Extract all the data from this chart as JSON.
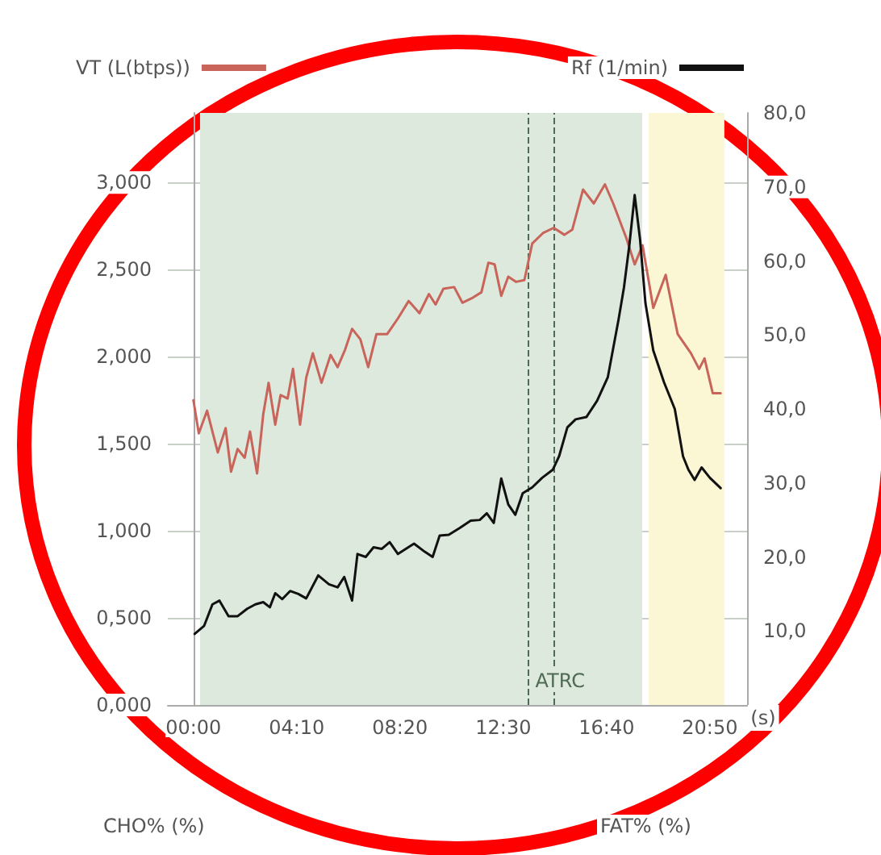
{
  "chart_data": {
    "type": "line",
    "xlabel": "(s)",
    "legend": "top",
    "grid": true,
    "marker": "none",
    "line_style": "solid",
    "xlim": [
      -62,
      1340
    ],
    "xticks": [
      {
        "value": 0,
        "label": "00:00"
      },
      {
        "value": 250,
        "label": "04:10"
      },
      {
        "value": 500,
        "label": "08:20"
      },
      {
        "value": 750,
        "label": "12:30"
      },
      {
        "value": 1000,
        "label": "16:40"
      },
      {
        "value": 1250,
        "label": "20:50"
      }
    ],
    "ylim": [
      0,
      3.4
    ],
    "yticks": [
      {
        "value": 0,
        "label": "0,000"
      },
      {
        "value": 0.5,
        "label": "0,500"
      },
      {
        "value": 1,
        "label": "1,000"
      },
      {
        "value": 1.5,
        "label": "1,500"
      },
      {
        "value": 2,
        "label": "2,000"
      },
      {
        "value": 2.5,
        "label": "2,500"
      },
      {
        "value": 3,
        "label": "3,000"
      }
    ],
    "y2lim": [
      0,
      80
    ],
    "y2ticks": [
      {
        "value": 10,
        "label": "10,0"
      },
      {
        "value": 20,
        "label": "20,0"
      },
      {
        "value": 30,
        "label": "30,0"
      },
      {
        "value": 40,
        "label": "40,0"
      },
      {
        "value": 50,
        "label": "50,0"
      },
      {
        "value": 60,
        "label": "60,0"
      },
      {
        "value": 70,
        "label": "70,0"
      },
      {
        "value": 80,
        "label": "80,0"
      }
    ],
    "series": [
      {
        "name": "VT (L(btps))",
        "color": "#c8645a",
        "x": [
          0,
          13,
          33,
          59,
          78,
          91,
          107,
          124,
          137,
          154,
          169,
          182,
          198,
          211,
          228,
          241,
          258,
          273,
          289,
          310,
          332,
          349,
          367,
          384,
          404,
          423,
          443,
          469,
          495,
          521,
          547,
          570,
          586,
          605,
          631,
          651,
          677,
          697,
          714,
          729,
          745,
          762,
          781,
          801,
          820,
          846,
          872,
          898,
          917,
          943,
          969,
          996,
          1016,
          1048,
          1068,
          1087,
          1113,
          1143,
          1172,
          1204,
          1224,
          1237,
          1257,
          1276
        ],
        "values": [
          1.75,
          1.56,
          1.69,
          1.45,
          1.59,
          1.34,
          1.47,
          1.42,
          1.57,
          1.33,
          1.67,
          1.85,
          1.61,
          1.78,
          1.76,
          1.93,
          1.61,
          1.88,
          2.02,
          1.85,
          2.01,
          1.94,
          2.04,
          2.16,
          2.1,
          1.94,
          2.13,
          2.13,
          2.22,
          2.32,
          2.25,
          2.36,
          2.3,
          2.39,
          2.4,
          2.31,
          2.34,
          2.37,
          2.54,
          2.53,
          2.35,
          2.46,
          2.43,
          2.44,
          2.65,
          2.71,
          2.74,
          2.7,
          2.73,
          2.96,
          2.88,
          2.99,
          2.88,
          2.68,
          2.53,
          2.64,
          2.28,
          2.47,
          2.13,
          2.02,
          1.93,
          1.99,
          1.79,
          1.79
        ]
      },
      {
        "name": "Rf (1/min)",
        "color": "#111111",
        "axis": "y2",
        "x": [
          3,
          26,
          46,
          63,
          85,
          107,
          130,
          150,
          169,
          185,
          198,
          215,
          234,
          254,
          273,
          302,
          328,
          349,
          365,
          384,
          397,
          417,
          436,
          456,
          475,
          495,
          514,
          534,
          560,
          579,
          596,
          618,
          644,
          671,
          693,
          710,
          727,
          745,
          762,
          779,
          797,
          820,
          844,
          870,
          885,
          905,
          925,
          951,
          977,
          1003,
          1029,
          1042,
          1055,
          1068,
          1081,
          1094,
          1113,
          1139,
          1165,
          1185,
          1198,
          1213,
          1230,
          1250,
          1276
        ],
        "values": [
          9.6,
          10.7,
          13.6,
          14.1,
          12,
          12,
          13,
          13.6,
          13.9,
          13.2,
          15.1,
          14.3,
          15.4,
          15,
          14.4,
          17.5,
          16.3,
          15.9,
          17.3,
          14.1,
          20.4,
          20,
          21.3,
          21.1,
          22,
          20.4,
          21.1,
          21.8,
          20.7,
          20,
          22.9,
          23,
          23.9,
          24.9,
          25,
          25.9,
          24.6,
          30.6,
          27.1,
          25.7,
          28.6,
          29.4,
          30.7,
          31.8,
          33.6,
          37.5,
          38.6,
          38.9,
          41.1,
          44.3,
          52.1,
          56.4,
          62.1,
          68.9,
          62.9,
          54.3,
          47.9,
          43.6,
          40,
          33.6,
          31.8,
          30.4,
          32.1,
          30.7,
          29.3
        ]
      }
    ],
    "bands": [
      {
        "axis": "x",
        "from": 16,
        "to": 1086,
        "color": "#dde9dc"
      },
      {
        "axis": "x",
        "from": 1102,
        "to": 1285,
        "color": "#fbf6d4"
      }
    ],
    "ref_lines": [
      {
        "axis": "x",
        "value": 808,
        "label": "ATRC",
        "color": "#4f6b55",
        "line_style": "dashed"
      },
      {
        "axis": "x",
        "value": 871,
        "label": null,
        "color": "#4f6b55",
        "line_style": "dashed"
      }
    ],
    "annotations": [
      "CHO% (%)",
      "FAT% (%)"
    ]
  }
}
